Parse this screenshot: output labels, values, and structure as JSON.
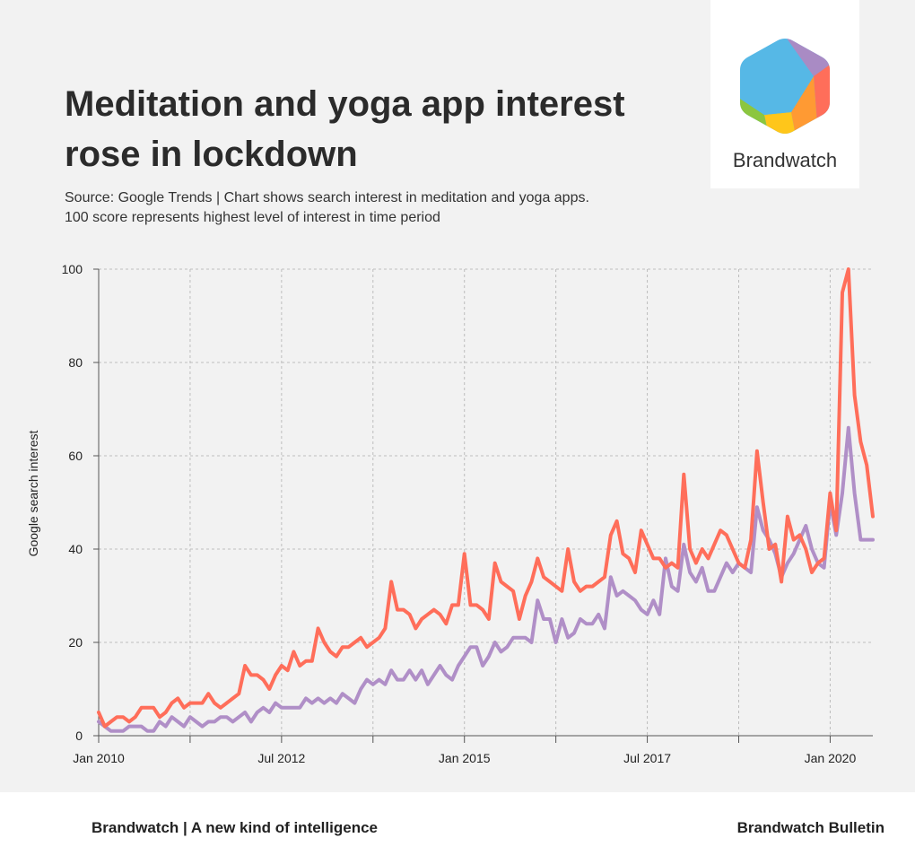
{
  "header": {
    "title": "Meditation and yoga app interest rose in lockdown",
    "subtitle_line1": "Source: Google Trends | Chart shows search interest in meditation and yoga apps.",
    "subtitle_line2": "100 score represents highest level of interest in time period"
  },
  "logo": {
    "wordmark": "Brandwatch",
    "icon": "brandwatch-hexagon-icon"
  },
  "footer": {
    "left": "Brandwatch | A new kind of intelligence",
    "right": "Brandwatch Bulletin"
  },
  "chart_data": {
    "type": "line",
    "title": "Meditation and yoga app interest rose in lockdown",
    "xlabel": "",
    "ylabel": "Google search interest",
    "ylim": [
      0,
      100
    ],
    "yticks": [
      0,
      20,
      40,
      60,
      80,
      100
    ],
    "x_start": "Jan 2010",
    "x_end": "Jul 2020",
    "xtick_labels": [
      "Jan 2010",
      "Jul 2012",
      "Jan 2015",
      "Jul 2017",
      "Jan 2020"
    ],
    "grid": true,
    "legend": "none",
    "series": [
      {
        "color": "#ff6e5a",
        "values": [
          5,
          2,
          3,
          4,
          4,
          3,
          4,
          6,
          6,
          6,
          4,
          5,
          7,
          8,
          6,
          7,
          7,
          7,
          9,
          7,
          6,
          7,
          8,
          9,
          15,
          13,
          13,
          12,
          10,
          13,
          15,
          14,
          18,
          15,
          16,
          16,
          23,
          20,
          18,
          17,
          19,
          19,
          20,
          21,
          19,
          20,
          21,
          23,
          33,
          27,
          27,
          26,
          23,
          25,
          26,
          27,
          26,
          24,
          28,
          28,
          39,
          28,
          28,
          27,
          25,
          37,
          33,
          32,
          31,
          25,
          30,
          33,
          38,
          34,
          33,
          32,
          31,
          40,
          33,
          31,
          32,
          32,
          33,
          34,
          43,
          46,
          39,
          38,
          35,
          44,
          41,
          38,
          38,
          36,
          37,
          36,
          56,
          40,
          37,
          40,
          38,
          41,
          44,
          43,
          40,
          37,
          36,
          42,
          61,
          50,
          40,
          41,
          33,
          47,
          42,
          43,
          40,
          35,
          37,
          38,
          52,
          44,
          95,
          100,
          73,
          63,
          58,
          47
        ],
        "name": ""
      },
      {
        "color": "#b08fc7",
        "values": [
          3,
          2,
          1,
          1,
          1,
          2,
          2,
          2,
          1,
          1,
          3,
          2,
          4,
          3,
          2,
          4,
          3,
          2,
          3,
          3,
          4,
          4,
          3,
          4,
          5,
          3,
          5,
          6,
          5,
          7,
          6,
          6,
          6,
          6,
          8,
          7,
          8,
          7,
          8,
          7,
          9,
          8,
          7,
          10,
          12,
          11,
          12,
          11,
          14,
          12,
          12,
          14,
          12,
          14,
          11,
          13,
          15,
          13,
          12,
          15,
          17,
          19,
          19,
          15,
          17,
          20,
          18,
          19,
          21,
          21,
          21,
          20,
          29,
          25,
          25,
          20,
          25,
          21,
          22,
          25,
          24,
          24,
          26,
          23,
          34,
          30,
          31,
          30,
          29,
          27,
          26,
          29,
          26,
          38,
          32,
          31,
          41,
          35,
          33,
          36,
          31,
          31,
          34,
          37,
          35,
          37,
          36,
          35,
          49,
          44,
          42,
          39,
          34,
          37,
          39,
          42,
          45,
          40,
          37,
          36,
          50,
          43,
          52,
          66,
          52,
          42,
          42,
          42
        ],
        "name": ""
      }
    ]
  }
}
